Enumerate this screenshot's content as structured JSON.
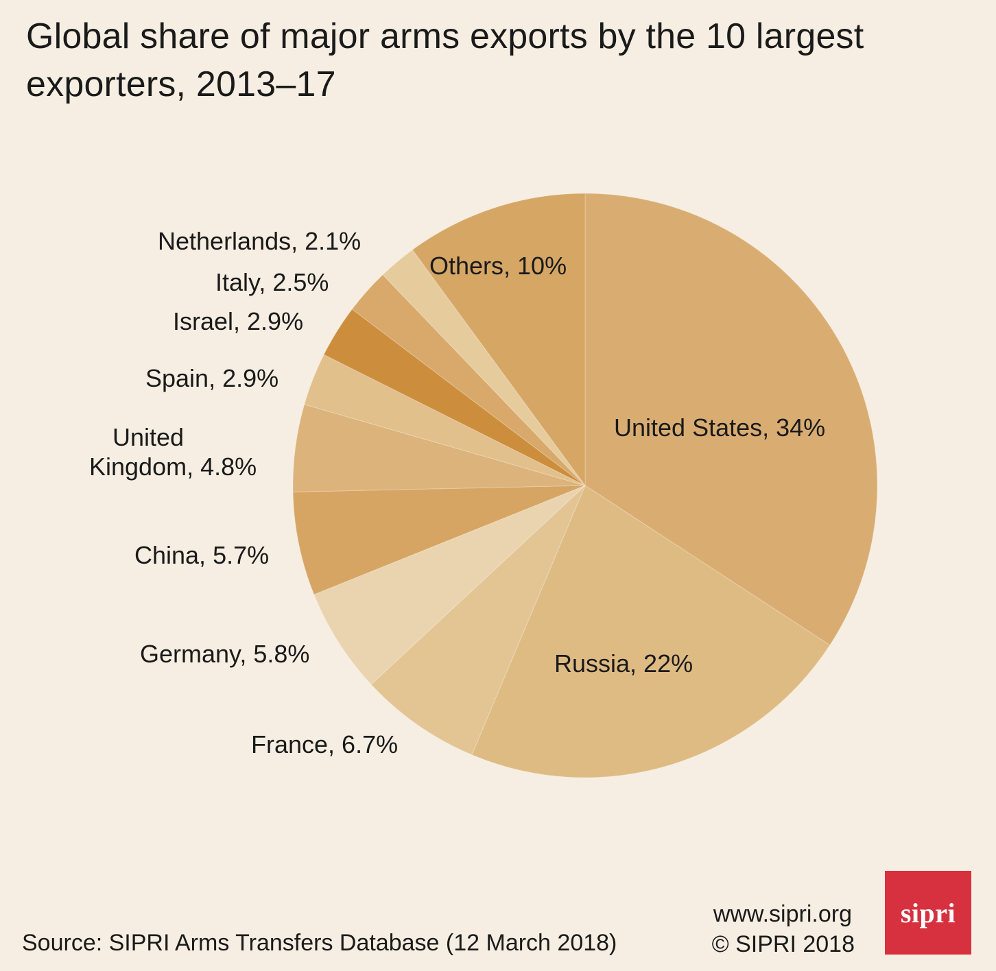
{
  "title": "Global share of major arms exports by the 10 largest exporters, 2013–17",
  "chart_data": {
    "type": "pie",
    "title": "Global share of major arms exports by the 10 largest exporters, 2013–17",
    "unit": "%",
    "start": "12 o'clock, clockwise",
    "slices": [
      {
        "label": "United States, 34%",
        "name": "United States",
        "value": 34,
        "color": "#d9ad72"
      },
      {
        "label": "Russia, 22%",
        "name": "Russia",
        "value": 22,
        "color": "#dfbb84"
      },
      {
        "label": "France, 6.7%",
        "name": "France",
        "value": 6.7,
        "color": "#e3c594"
      },
      {
        "label": "Germany, 5.8%",
        "name": "Germany",
        "value": 5.8,
        "color": "#ead4af"
      },
      {
        "label": "China, 5.7%",
        "name": "China",
        "value": 5.7,
        "color": "#d6a564"
      },
      {
        "label": "United Kingdom, 4.8%",
        "name": "United Kingdom",
        "value": 4.8,
        "color": "#dcb37a"
      },
      {
        "label": "Spain, 2.9%",
        "name": "Spain",
        "value": 2.9,
        "color": "#e2c08b"
      },
      {
        "label": "Israel, 2.9%",
        "name": "Israel",
        "value": 2.9,
        "color": "#cc8e3d"
      },
      {
        "label": "Italy, 2.5%",
        "name": "Italy",
        "value": 2.5,
        "color": "#d8a96a"
      },
      {
        "label": "Netherlands, 2.1%",
        "name": "Netherlands",
        "value": 2.1,
        "color": "#e6cb9d"
      },
      {
        "label": "Others, 10%",
        "name": "Others",
        "value": 10,
        "color": "#d6a665"
      }
    ]
  },
  "labels": {
    "united_states": "United States, 34%",
    "russia": "Russia, 22%",
    "france": "France, 6.7%",
    "germany": "Germany, 5.8%",
    "china": "China, 5.7%",
    "uk_line1": "United",
    "uk_line2": "Kingdom, 4.8%",
    "spain": "Spain, 2.9%",
    "israel": "Israel, 2.9%",
    "italy": "Italy, 2.5%",
    "netherlands": "Netherlands, 2.1%",
    "others": "Others, 10%"
  },
  "footer": {
    "source": "Source: SIPRI Arms Transfers Database (12 March 2018)",
    "website": "www.sipri.org",
    "copyright": "© SIPRI 2018",
    "logo_text": "sipri",
    "logo_color": "#d7313f"
  }
}
